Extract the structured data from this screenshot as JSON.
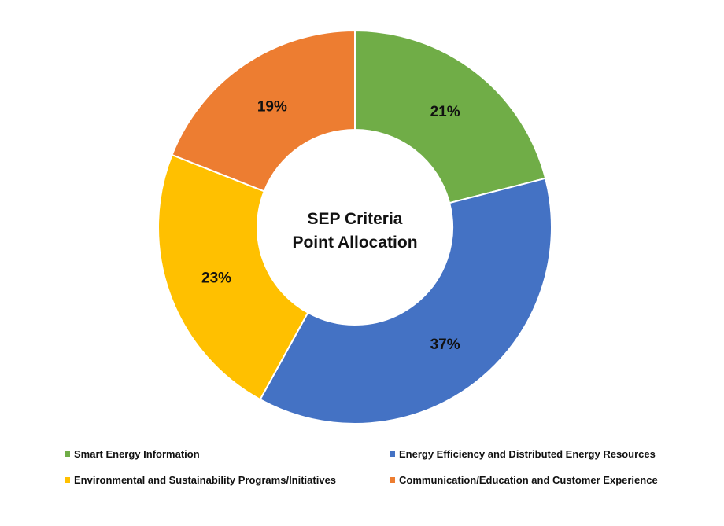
{
  "chart_data": {
    "type": "pie",
    "variant": "donut",
    "title_lines": [
      "SEP Criteria",
      "Point Allocation"
    ],
    "categories": [
      "Smart Energy Information",
      "Energy Efficiency and Distributed Energy Resources",
      "Environmental and Sustainability Programs/Initiatives",
      "Communication/Education and Customer Experience"
    ],
    "values": [
      21,
      37,
      23,
      19
    ],
    "labels": [
      "21%",
      "37%",
      "23%",
      "19%"
    ],
    "colors": [
      "#70AD47",
      "#4472C4",
      "#FFC000",
      "#ED7D31"
    ],
    "legend_position": "bottom"
  }
}
